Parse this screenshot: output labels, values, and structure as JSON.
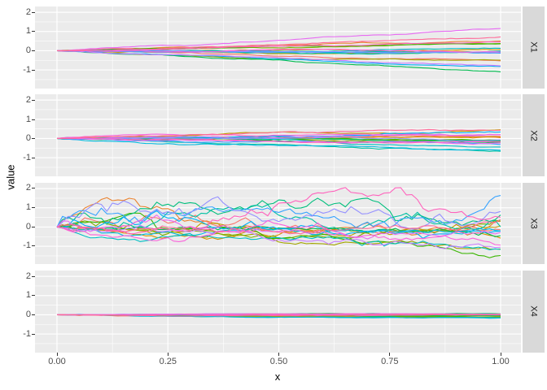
{
  "chart_data": {
    "type": "line",
    "title": "",
    "xlabel": "x",
    "ylabel": "value",
    "x_ticks": [
      "0.00",
      "0.25",
      "0.50",
      "0.75",
      "1.00"
    ],
    "x_tick_values": [
      0,
      0.25,
      0.5,
      0.75,
      1.0
    ],
    "y_ticks": [
      "2",
      "1",
      "0",
      "-1"
    ],
    "y_tick_values": [
      2,
      1,
      0,
      -1
    ],
    "x_range_shown": [
      -0.05,
      1.046
    ],
    "y_range_shown": [
      -1.94,
      2.3
    ],
    "grid": {
      "major_x": [
        0,
        0.25,
        0.5,
        0.75,
        1.0
      ],
      "minor_x": [
        0.125,
        0.375,
        0.625,
        0.875
      ],
      "major_y": [
        2,
        1,
        0,
        -1
      ],
      "minor_y": [
        1.5,
        0.5,
        -0.5,
        -1.5
      ]
    },
    "legend": "none",
    "facet_strip_side": "right",
    "n_series_per_facet": 20,
    "n_points": 81,
    "facets": [
      {
        "label": "X1",
        "process": "fan",
        "end_spread": [
          -1.12,
          1.1
        ],
        "wiggle": 0.012,
        "seed": 11,
        "top_series": 16,
        "bottom_series": 7
      },
      {
        "label": "X2",
        "process": "fan",
        "end_spread": [
          -0.6,
          0.45
        ],
        "wiggle": 0.016,
        "seed": 22,
        "top_series": 3,
        "bottom_series": 9
      },
      {
        "label": "X3",
        "process": "walk",
        "sd": 0.9,
        "value_range": [
          -1.6,
          2.05
        ],
        "seed": 33
      },
      {
        "label": "X4",
        "process": "walk",
        "sd": 0.05,
        "value_range": [
          -0.18,
          0.07
        ],
        "seed": 44
      }
    ],
    "series_colors": [
      "#F8766D",
      "#EA8331",
      "#D89000",
      "#C09B00",
      "#A3A500",
      "#7CAE00",
      "#39B600",
      "#00BB4E",
      "#00BF7D",
      "#00C1A3",
      "#00BFC4",
      "#00BAE0",
      "#00B0F6",
      "#35A2FF",
      "#9590FF",
      "#C77CFF",
      "#E76BF3",
      "#FA62DB",
      "#FF62BC",
      "#FF6A98"
    ]
  },
  "colors": {
    "background": "#FFFFFF",
    "panel_bg": "#EBEBEB",
    "strip_bg": "#D9D9D9",
    "gridline": "#FFFFFF",
    "tick_text": "#4D4D4D",
    "axis_title_text": "#000000",
    "strip_text": "#1A1A1A",
    "tick_mark": "#333333"
  }
}
